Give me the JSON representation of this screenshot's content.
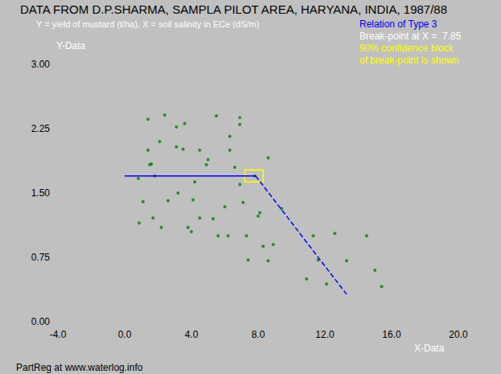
{
  "chart_data": {
    "type": "scatter",
    "title": "DATA FROM D.P.SHARMA, SAMPLA PILOT AREA, HARYANA, INDIA, 1987/88",
    "subtitle": "Y = yield of mustard (t/ha), X = soil salinity in ECe (dS/m)",
    "x_label": "X-Data",
    "y_label": "Y-Data",
    "annotations": [
      {
        "text": "Relation of Type 3",
        "color": "#0000ff"
      },
      {
        "text": "Break-point at X =  7.85",
        "color": "#ffffff"
      },
      {
        "text": "90% confidence block",
        "color": "#ffff00"
      },
      {
        "text": "of break-point is shown",
        "color": "#ffff00"
      }
    ],
    "footer": "PartReg at www.waterlog.info",
    "xlim": [
      -4,
      20
    ],
    "xticks": [
      {
        "value": -4,
        "label": "-4.0"
      },
      {
        "value": 0,
        "label": "0.0"
      },
      {
        "value": 4,
        "label": "4.0"
      },
      {
        "value": 8,
        "label": "8.0"
      },
      {
        "value": 12,
        "label": "12.0"
      },
      {
        "value": 16,
        "label": "16.0"
      },
      {
        "value": 20,
        "label": "20.0"
      }
    ],
    "ylim": [
      0,
      3
    ],
    "yticks": [
      {
        "value": 0,
        "label": "0.00"
      },
      0.75,
      {
        "value": 1.5,
        "label": "1.50"
      },
      2.25,
      {
        "value": 3,
        "label": "3.00"
      }
    ],
    "grid": false,
    "series": [
      {
        "type": "scatter",
        "color": "#008000",
        "marker": "circle",
        "x": [
          0.82,
          0.87,
          1.1,
          1.4,
          1.4,
          1.5,
          1.6,
          1.7,
          1.8,
          2.1,
          2.2,
          2.4,
          2.6,
          3.1,
          3.1,
          3.2,
          3.5,
          3.6,
          3.8,
          4.0,
          4.1,
          4.2,
          4.5,
          4.5,
          4.9,
          5.0,
          5.3,
          5.5,
          5.6,
          6.0,
          6.2,
          6.3,
          6.3,
          6.6,
          6.9,
          6.9,
          6.9,
          7.1,
          7.3,
          7.4,
          7.8,
          8.0,
          8.1,
          8.3,
          8.6,
          8.6,
          8.9,
          9.4,
          10.9,
          11.3,
          11.6,
          12.1,
          12.6,
          13.3,
          14.5,
          15.0,
          15.4
        ],
        "values": [
          1.67,
          1.15,
          1.4,
          2.36,
          2.0,
          1.83,
          1.84,
          1.21,
          1.7,
          2.1,
          1.1,
          2.41,
          1.41,
          2.27,
          2.04,
          1.5,
          2.01,
          2.31,
          1.1,
          1.05,
          1.42,
          1.63,
          2.0,
          1.21,
          1.83,
          1.89,
          1.2,
          2.4,
          1.0,
          1.34,
          1.0,
          2.0,
          2.16,
          1.8,
          2.38,
          2.3,
          1.6,
          1.39,
          1.0,
          0.72,
          1.7,
          1.23,
          1.27,
          0.88,
          1.91,
          0.71,
          0.9,
          1.32,
          0.5,
          1.0,
          0.72,
          0.44,
          1.03,
          0.71,
          1.0,
          0.6,
          0.41
        ]
      },
      {
        "type": "line",
        "color": "#0000ff",
        "line_style": "solid",
        "x": [
          0,
          7.85
        ],
        "values": [
          1.7,
          1.7
        ]
      },
      {
        "type": "line",
        "color": "#0000ff",
        "line_style": "dashed",
        "x": [
          7.85,
          13.3
        ],
        "values": [
          1.7,
          0.32
        ]
      }
    ],
    "confidence_block": {
      "x": [
        7.2,
        8.3
      ],
      "y": [
        1.63,
        1.77
      ],
      "color": "#ffff00"
    }
  }
}
